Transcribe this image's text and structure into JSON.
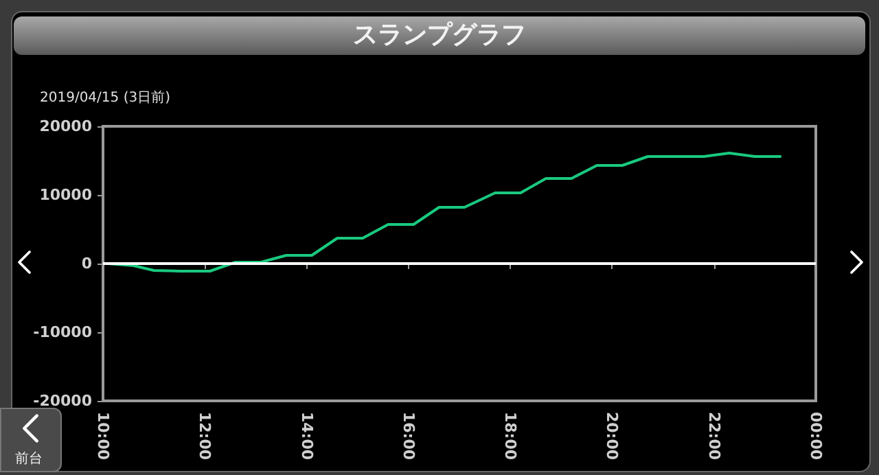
{
  "chart_data": {
    "type": "line",
    "title": "スランプグラフ",
    "subtitle": "2019/04/15 (3日前)",
    "annotations": [
      "前台"
    ],
    "x": [
      10.1,
      10.6,
      11.0,
      11.5,
      12.1,
      12.6,
      13.1,
      13.6,
      14.1,
      14.6,
      15.1,
      15.6,
      16.1,
      16.6,
      17.1,
      17.7,
      18.2,
      18.7,
      19.2,
      19.7,
      20.2,
      20.7,
      21.2,
      21.8,
      22.3,
      22.8,
      23.3
    ],
    "series": [
      {
        "color": "#19c97f",
        "values": [
          0,
          -300,
          -1000,
          -1100,
          -1100,
          200,
          200,
          1200,
          1200,
          3700,
          3700,
          5700,
          5700,
          8200,
          8200,
          10300,
          10300,
          12400,
          12400,
          14300,
          14300,
          15600,
          15600,
          15600,
          16100,
          15600,
          15600
        ]
      }
    ],
    "xlim": [
      10,
      24
    ],
    "xticks": [
      {
        "value": 10,
        "label": "10:00"
      },
      {
        "value": 12,
        "label": "12:00"
      },
      {
        "value": 14,
        "label": "14:00"
      },
      {
        "value": 16,
        "label": "16:00"
      },
      {
        "value": 18,
        "label": "18:00"
      },
      {
        "value": 20,
        "label": "20:00"
      },
      {
        "value": 22,
        "label": "22:00"
      },
      {
        "value": 24,
        "label": "00:00"
      }
    ],
    "ylim": [
      -20000,
      20000
    ],
    "yticks": [
      -20000,
      -10000,
      0,
      10000,
      20000
    ],
    "ref_lines": [
      {
        "axis": "y",
        "value": 0,
        "color": "#ffffff"
      }
    ],
    "grid": false,
    "marker": "none",
    "line_style": "solid"
  }
}
